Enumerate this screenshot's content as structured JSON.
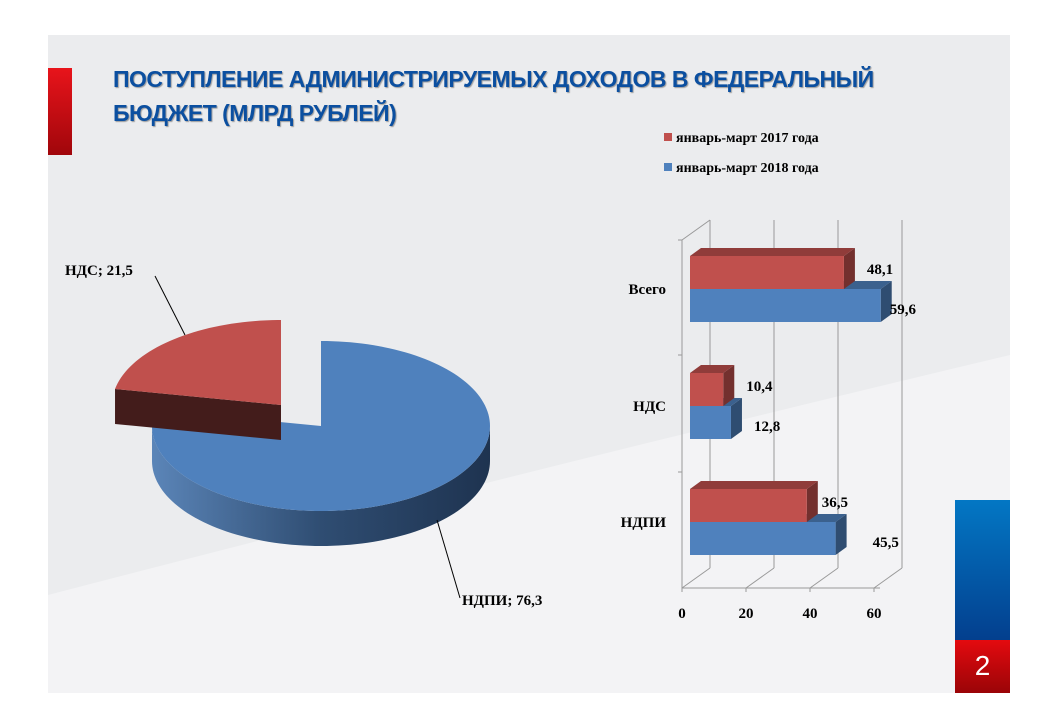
{
  "title_line1": "ПОСТУПЛЕНИЕ АДМИНИСТРИРУЕМЫХ ДОХОДОВ В ФЕДЕРАЛЬНЫЙ",
  "title_line2": "БЮДЖЕТ (МЛРД РУБЛЕЙ)",
  "page_number": "2",
  "colors": {
    "red": "#c0504d",
    "blue": "#4f81bd",
    "title": "#0b4fa0"
  },
  "chart_data": [
    {
      "type": "pie",
      "style": "3d-exploded",
      "slices": [
        {
          "label": "НДС; 21,5",
          "name": "НДС",
          "value": 21.5,
          "color": "#c0504d"
        },
        {
          "label": "НДПИ; 76,3",
          "name": "НДПИ",
          "value": 76.3,
          "color": "#4f81bd"
        }
      ]
    },
    {
      "type": "bar",
      "orientation": "horizontal",
      "style": "3d",
      "categories": [
        "Всего",
        "НДС",
        "НДПИ"
      ],
      "series": [
        {
          "name": "январь-март 2017 года",
          "values": [
            48.1,
            10.4,
            36.5
          ],
          "labels": [
            "48,1",
            "10,4",
            "36,5"
          ],
          "color": "#c0504d"
        },
        {
          "name": "январь-март 2018 года",
          "values": [
            59.6,
            12.8,
            45.5
          ],
          "labels": [
            "59,6",
            "12,8",
            "45,5"
          ],
          "color": "#4f81bd"
        }
      ],
      "xlim": [
        0,
        60
      ],
      "xticks": [
        "0",
        "20",
        "40",
        "60"
      ],
      "grid": true,
      "legend": "top"
    }
  ]
}
